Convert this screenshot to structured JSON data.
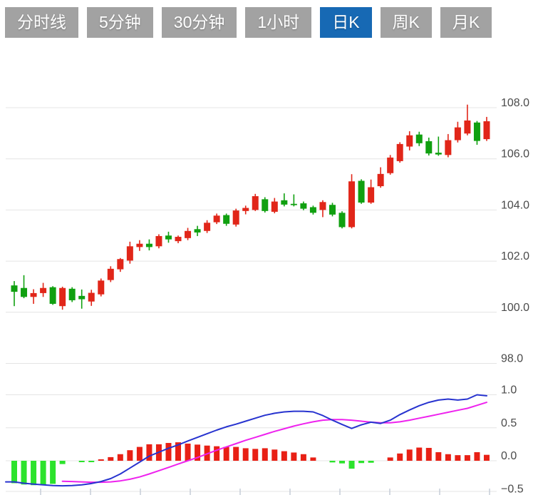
{
  "toolbar": {
    "buttons": [
      {
        "name": "tab-timeline",
        "label": "分时线",
        "active": false
      },
      {
        "name": "tab-5min",
        "label": "5分钟",
        "active": false
      },
      {
        "name": "tab-30min",
        "label": "30分钟",
        "active": false
      },
      {
        "name": "tab-1hour",
        "label": "1小时",
        "active": false
      },
      {
        "name": "tab-daily-k",
        "label": "日K",
        "active": true
      },
      {
        "name": "tab-weekly-k",
        "label": "周K",
        "active": false
      },
      {
        "name": "tab-monthly-k",
        "label": "月K",
        "active": false
      }
    ]
  },
  "colors": {
    "button_bg": "#a2a2a2",
    "button_active_bg": "#1769b4",
    "button_text": "#ffffff",
    "up": "#e12619",
    "down": "#10a010",
    "macd_up": "#e82015",
    "macd_down": "#2ce32c",
    "dif_line": "#2733cf",
    "dea_line": "#ee22ee",
    "grid": "#e4e4e4",
    "axis_text": "#4a4a4a",
    "tick": "#c6cdd8"
  },
  "chart_data": {
    "type": "candlestick",
    "title": "",
    "convention": "red = up, green = down (Chinese K-line convention)",
    "selected_interval": "日K",
    "price_axis": {
      "side": "right",
      "ticks": [
        108.0,
        106.0,
        104.0,
        102.0,
        100.0,
        98.0
      ],
      "labels": [
        "108.0",
        "106.0",
        "104.0",
        "102.0",
        "100.0",
        "98.0"
      ],
      "range": [
        97.5,
        108.6
      ],
      "grid": true
    },
    "macd_axis": {
      "side": "right",
      "ticks": [
        1.0,
        0.5,
        0.0,
        -0.5
      ],
      "labels": [
        "1.0",
        "0.5",
        "0.0",
        "−0.5"
      ],
      "range": [
        -0.5,
        1.0
      ],
      "grid": true
    },
    "candles_ohlc": [
      [
        101.05,
        101.22,
        100.24,
        100.8
      ],
      [
        100.95,
        101.45,
        100.55,
        100.6
      ],
      [
        100.6,
        100.9,
        100.33,
        100.75
      ],
      [
        100.75,
        101.15,
        100.6,
        100.95
      ],
      [
        100.98,
        101.02,
        100.29,
        100.33
      ],
      [
        100.24,
        101.0,
        100.1,
        100.95
      ],
      [
        100.92,
        100.98,
        100.4,
        100.47
      ],
      [
        100.64,
        100.89,
        100.14,
        100.51
      ],
      [
        100.42,
        100.88,
        100.25,
        100.76
      ],
      [
        100.7,
        101.32,
        100.62,
        101.24
      ],
      [
        101.26,
        101.8,
        101.18,
        101.7
      ],
      [
        101.68,
        102.12,
        101.58,
        102.08
      ],
      [
        102.02,
        102.76,
        101.9,
        102.58
      ],
      [
        102.55,
        102.82,
        102.4,
        102.68
      ],
      [
        102.68,
        102.85,
        102.42,
        102.55
      ],
      [
        102.58,
        103.05,
        102.5,
        102.98
      ],
      [
        103.0,
        103.15,
        102.72,
        102.85
      ],
      [
        102.78,
        103.0,
        102.7,
        102.95
      ],
      [
        102.9,
        103.3,
        102.82,
        103.18
      ],
      [
        103.25,
        103.38,
        102.98,
        103.12
      ],
      [
        103.18,
        103.6,
        103.1,
        103.5
      ],
      [
        103.52,
        103.86,
        103.45,
        103.78
      ],
      [
        103.8,
        103.86,
        103.38,
        103.46
      ],
      [
        103.43,
        104.05,
        103.35,
        103.98
      ],
      [
        103.96,
        104.17,
        103.83,
        104.08
      ],
      [
        104.0,
        104.63,
        103.96,
        104.54
      ],
      [
        104.42,
        104.5,
        103.9,
        103.96
      ],
      [
        103.93,
        104.47,
        103.87,
        104.33
      ],
      [
        104.38,
        104.65,
        104.14,
        104.21
      ],
      [
        104.24,
        104.61,
        104.14,
        104.19
      ],
      [
        104.26,
        104.33,
        103.99,
        104.05
      ],
      [
        104.11,
        104.17,
        103.82,
        103.89
      ],
      [
        104.0,
        104.38,
        103.72,
        104.31
      ],
      [
        104.2,
        104.28,
        103.75,
        103.82
      ],
      [
        103.89,
        103.95,
        103.28,
        103.33
      ],
      [
        103.33,
        105.4,
        103.28,
        105.12
      ],
      [
        105.14,
        105.2,
        104.24,
        104.29
      ],
      [
        104.29,
        105.19,
        104.24,
        104.89
      ],
      [
        104.93,
        105.67,
        104.87,
        105.41
      ],
      [
        105.44,
        106.15,
        105.38,
        106.05
      ],
      [
        105.91,
        106.65,
        105.85,
        106.58
      ],
      [
        106.48,
        107.08,
        106.33,
        106.92
      ],
      [
        106.95,
        107.06,
        106.5,
        106.61
      ],
      [
        106.69,
        106.83,
        106.13,
        106.21
      ],
      [
        106.24,
        106.87,
        106.12,
        106.17
      ],
      [
        106.15,
        106.97,
        106.06,
        106.73
      ],
      [
        106.73,
        107.45,
        106.64,
        107.23
      ],
      [
        106.99,
        108.12,
        106.92,
        107.5
      ],
      [
        107.42,
        107.48,
        106.55,
        106.7
      ],
      [
        106.77,
        107.64,
        106.7,
        107.47
      ]
    ],
    "macd": {
      "histogram": [
        -0.34,
        -0.36,
        -0.37,
        -0.36,
        -0.35,
        -0.05,
        0,
        -0.02,
        -0.02,
        0.02,
        0.055,
        0.1,
        0.16,
        0.21,
        0.25,
        0.25,
        0.27,
        0.28,
        0.26,
        0.245,
        0.23,
        0.22,
        0.21,
        0.21,
        0.19,
        0.18,
        0.19,
        0.17,
        0.145,
        0.125,
        0.1,
        0.05,
        0,
        -0.025,
        -0.04,
        -0.12,
        -0.035,
        -0.03,
        0,
        0.05,
        0.11,
        0.17,
        0.2,
        0.195,
        0.13,
        0.1,
        0.085,
        0.085,
        0.13,
        0.09
      ],
      "dif": [
        -0.32,
        -0.34,
        -0.355,
        -0.365,
        -0.375,
        -0.38,
        -0.375,
        -0.365,
        -0.345,
        -0.315,
        -0.27,
        -0.2,
        -0.11,
        -0.02,
        0.07,
        0.13,
        0.19,
        0.24,
        0.3,
        0.355,
        0.41,
        0.465,
        0.515,
        0.555,
        0.6,
        0.645,
        0.69,
        0.72,
        0.74,
        0.75,
        0.75,
        0.74,
        0.685,
        0.615,
        0.55,
        0.49,
        0.545,
        0.585,
        0.565,
        0.615,
        0.7,
        0.77,
        0.835,
        0.885,
        0.92,
        0.935,
        0.92,
        0.935,
        1.0,
        0.985
      ],
      "dea": [
        null,
        null,
        null,
        null,
        null,
        -0.31,
        -0.315,
        -0.32,
        -0.325,
        -0.325,
        -0.32,
        -0.305,
        -0.28,
        -0.245,
        -0.2,
        -0.15,
        -0.1,
        -0.05,
        0.0,
        0.05,
        0.105,
        0.16,
        0.21,
        0.26,
        0.31,
        0.355,
        0.4,
        0.445,
        0.485,
        0.525,
        0.56,
        0.59,
        0.615,
        0.625,
        0.625,
        0.615,
        0.6,
        0.585,
        0.575,
        0.575,
        0.59,
        0.615,
        0.645,
        0.675,
        0.705,
        0.735,
        0.765,
        0.795,
        0.84,
        0.885
      ]
    }
  }
}
